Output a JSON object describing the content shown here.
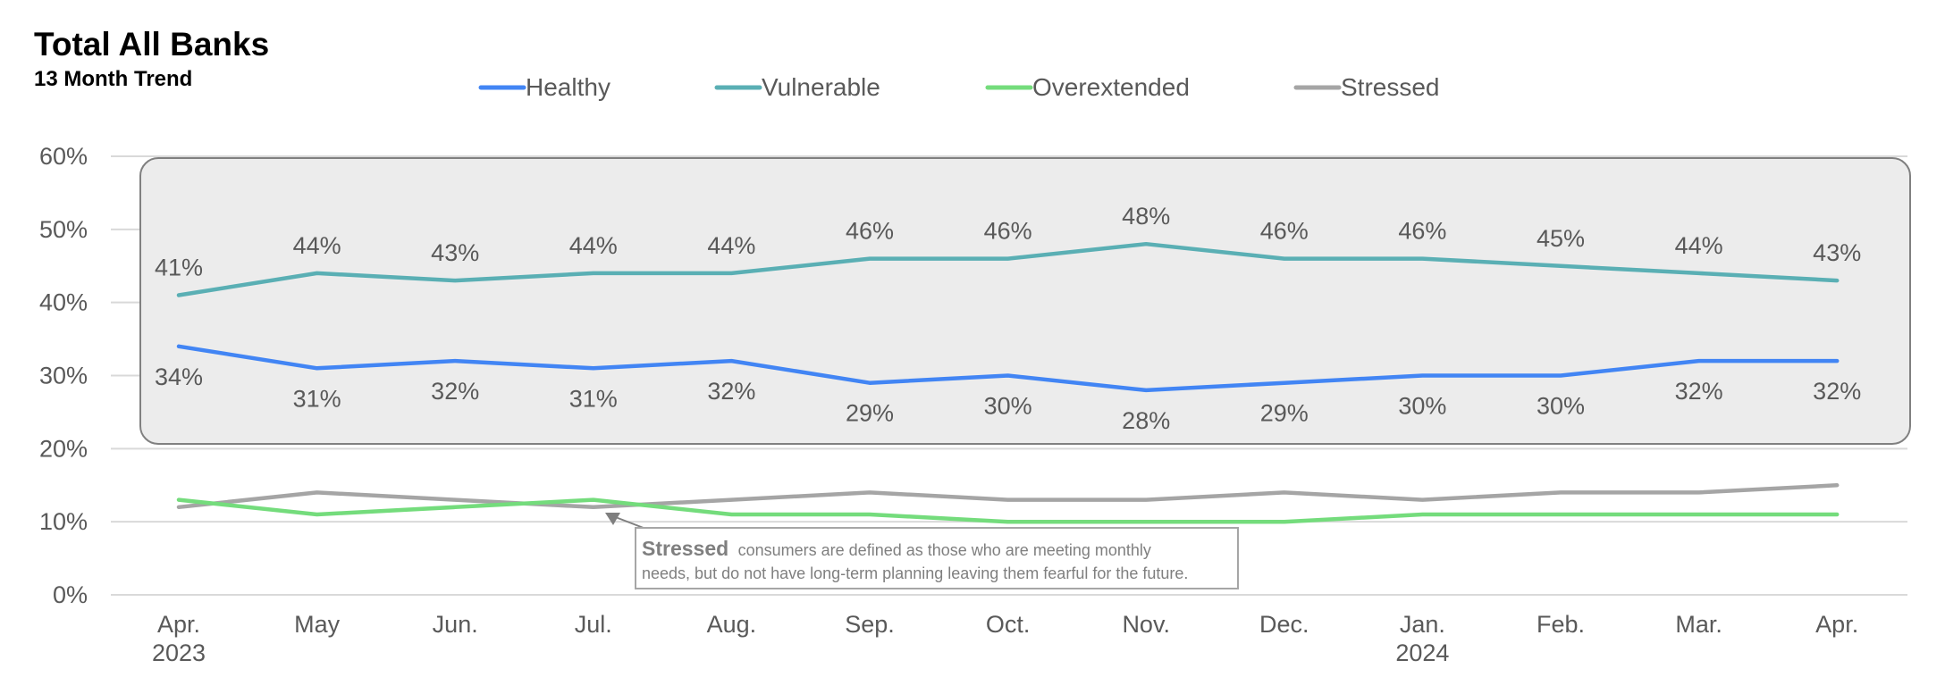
{
  "chart_data": {
    "type": "line",
    "title": "Total All Banks",
    "subtitle": "13 Month Trend",
    "categories": [
      "Apr.",
      "May",
      "Jun.",
      "Jul.",
      "Aug.",
      "Sep.",
      "Oct.",
      "Nov.",
      "Dec.",
      "Jan.",
      "Feb.",
      "Mar.",
      "Apr."
    ],
    "year_labels": [
      {
        "index": 0,
        "label": "2023"
      },
      {
        "index": 9,
        "label": "2024"
      }
    ],
    "ylim": [
      0,
      60
    ],
    "yticks": [
      0,
      10,
      20,
      30,
      40,
      50,
      60
    ],
    "ytick_suffix": "%",
    "grid": true,
    "legend_position": "top",
    "series": [
      {
        "name": "Healthy",
        "color": "#4285f4",
        "values": [
          34,
          31,
          32,
          31,
          32,
          29,
          30,
          28,
          29,
          30,
          30,
          32,
          32
        ],
        "labels": [
          "34%",
          "31%",
          "32%",
          "31%",
          "32%",
          "29%",
          "30%",
          "28%",
          "29%",
          "30%",
          "30%",
          "32%",
          "32%"
        ],
        "label_position": "below"
      },
      {
        "name": "Vulnerable",
        "color": "#5aafb4",
        "values": [
          41,
          44,
          43,
          44,
          44,
          46,
          46,
          48,
          46,
          46,
          45,
          44,
          43
        ],
        "labels": [
          "41%",
          "44%",
          "43%",
          "44%",
          "44%",
          "46%",
          "46%",
          "48%",
          "46%",
          "46%",
          "45%",
          "44%",
          "43%"
        ],
        "label_position": "above"
      },
      {
        "name": "Overextended",
        "color": "#74dc7c",
        "values": [
          13,
          11,
          12,
          13,
          11,
          11,
          10,
          10,
          10,
          11,
          11,
          11,
          11
        ]
      },
      {
        "name": "Stressed",
        "color": "#a5a5a5",
        "values": [
          12,
          14,
          13,
          12,
          13,
          14,
          13,
          13,
          14,
          13,
          14,
          14,
          15
        ]
      }
    ],
    "annotation": {
      "bold": "Stressed",
      "line1": "consumers are defined as those who are meeting monthly",
      "line2": "needs, but do not have long-term planning leaving them fearful for the future.",
      "points_to_index": 3
    }
  }
}
